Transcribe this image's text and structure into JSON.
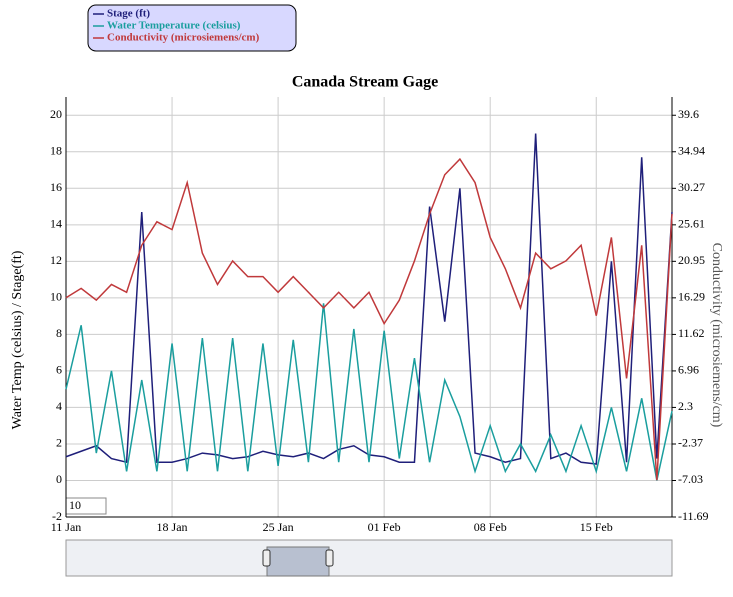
{
  "chart_data": {
    "type": "line",
    "title": "Canada Stream Gage",
    "ylabel": "Water Temp (celsius) / Stage(ft)",
    "y2label": "Conductivity (microsiemens/cm)",
    "x": [
      "11 Jan",
      "12 Jan",
      "13 Jan",
      "14 Jan",
      "15 Jan",
      "16 Jan",
      "17 Jan",
      "18 Jan",
      "19 Jan",
      "20 Jan",
      "21 Jan",
      "22 Jan",
      "23 Jan",
      "24 Jan",
      "25 Jan",
      "26 Jan",
      "27 Jan",
      "28 Jan",
      "29 Jan",
      "30 Jan",
      "31 Jan",
      "01 Feb",
      "02 Feb",
      "03 Feb",
      "04 Feb",
      "05 Feb",
      "06 Feb",
      "07 Feb",
      "08 Feb",
      "09 Feb",
      "10 Feb",
      "11 Feb",
      "12 Feb",
      "13 Feb",
      "14 Feb",
      "15 Feb",
      "16 Feb",
      "17 Feb",
      "18 Feb",
      "19 Feb",
      "20 Feb"
    ],
    "xticks": [
      "11 Jan",
      "18 Jan",
      "25 Jan",
      "01 Feb",
      "08 Feb",
      "15 Feb"
    ],
    "series": [
      {
        "name": "Stage (ft)",
        "color": "#1f1f7a",
        "values": [
          1.3,
          1.6,
          1.9,
          1.2,
          1.0,
          14.7,
          1.0,
          1.0,
          1.2,
          1.5,
          1.4,
          1.2,
          1.3,
          1.6,
          1.4,
          1.3,
          1.5,
          1.2,
          1.7,
          1.9,
          1.4,
          1.3,
          1.0,
          1.0,
          15.0,
          8.7,
          16.0,
          1.5,
          1.3,
          1.0,
          1.2,
          19.0,
          1.2,
          1.5,
          1.0,
          0.9,
          12.0,
          1.0,
          17.7,
          1.2,
          14.7
        ]
      },
      {
        "name": "Water Temperature (celsius)",
        "color": "#1a9e9e",
        "values": [
          5,
          8.5,
          1.5,
          6,
          0.5,
          5.5,
          0.5,
          7.5,
          0.5,
          7.8,
          0.5,
          7.8,
          0.5,
          7.5,
          0.8,
          7.7,
          1,
          9.7,
          1,
          8.3,
          1,
          8.2,
          1.2,
          6.7,
          1.0,
          5.5,
          3.5,
          0.5,
          3,
          0.5,
          2,
          0.5,
          2.5,
          0.5,
          3,
          0.5,
          4,
          0.5,
          4.5,
          0,
          3.8
        ]
      },
      {
        "name": "Conductivity (microsiemens/cm)",
        "color": "#c0393b",
        "axis": "y2",
        "values": [
          16.3,
          17.5,
          16,
          18,
          17,
          23,
          26,
          25,
          31,
          22,
          18,
          21,
          19,
          19,
          17,
          19,
          17,
          15,
          17,
          15,
          17,
          13,
          16,
          21,
          27,
          32,
          34,
          31,
          24,
          20,
          15,
          22,
          20,
          21,
          23,
          14,
          24,
          6,
          23,
          -7,
          27
        ]
      }
    ],
    "ylim": [
      -2,
      21
    ],
    "yticks": [
      -2,
      0,
      2,
      4,
      6,
      8,
      10,
      12,
      14,
      16,
      18,
      20
    ],
    "y2lim": [
      -11.69,
      41.93
    ],
    "y2ticks": [
      -11.69,
      -7.03,
      -2.37,
      2.3,
      6.96,
      11.62,
      16.29,
      20.95,
      25.61,
      30.27,
      34.94,
      39.6
    ],
    "grid": true,
    "legend": "top-left",
    "roll_period": "10"
  }
}
